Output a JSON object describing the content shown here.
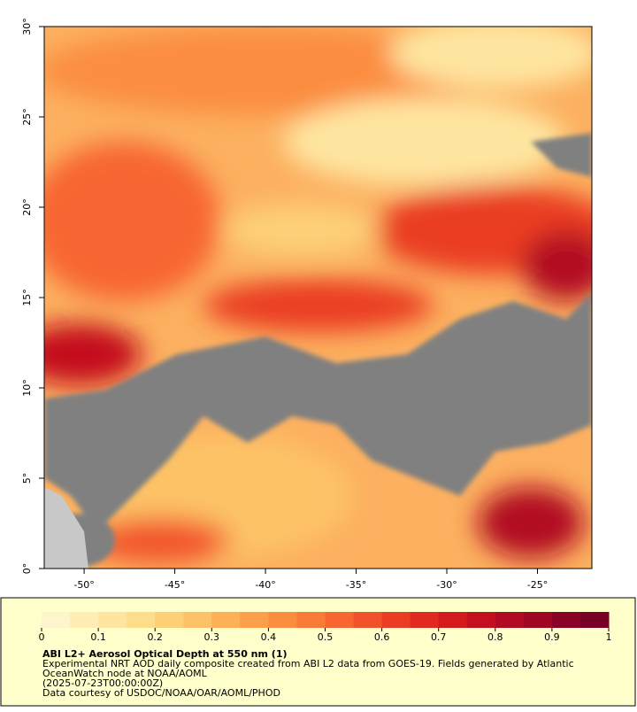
{
  "map": {
    "xlim": [
      -52.2,
      -22
    ],
    "ylim": [
      0,
      30
    ],
    "xticks": [
      {
        "value": -50,
        "label": "-50°"
      },
      {
        "value": -45,
        "label": "-45°"
      },
      {
        "value": -40,
        "label": "-40°"
      },
      {
        "value": -35,
        "label": "-35°"
      },
      {
        "value": -30,
        "label": "-30°"
      },
      {
        "value": -25,
        "label": "-25°"
      }
    ],
    "yticks": [
      {
        "value": 0,
        "label": "0°"
      },
      {
        "value": 5,
        "label": "5°"
      },
      {
        "value": 10,
        "label": "10°"
      },
      {
        "value": 15,
        "label": "15°"
      },
      {
        "value": 20,
        "label": "20°"
      },
      {
        "value": 25,
        "label": "25°"
      },
      {
        "value": 30,
        "label": "30°"
      }
    ]
  },
  "colorbar": {
    "range": [
      0,
      1
    ],
    "ticks": [
      0,
      0.1,
      0.2,
      0.3,
      0.4,
      0.5,
      0.6,
      0.7,
      0.8,
      0.9,
      1
    ],
    "colors": [
      "#fff5cc",
      "#ffedb3",
      "#fee6a0",
      "#fedd8a",
      "#fdd078",
      "#fdc266",
      "#fdb055",
      "#fc9f4a",
      "#fb8d40",
      "#fa7a38",
      "#f76630",
      "#f2522a",
      "#ea3d24",
      "#e0291f",
      "#d41a1c",
      "#c40f1f",
      "#b20a22",
      "#9e0624",
      "#8a0326",
      "#780024"
    ]
  },
  "caption": {
    "title": "ABI L2+ Aerosol Optical Depth at 550 nm (1)",
    "lines": [
      "Experimental NRT AOD daily composite created from ABI L2 data from GOES-19. Fields generated by Atlantic",
      "OceanWatch node at NOAA/AOML",
      "(2025-07-23T00:00:00Z)",
      "Data courtesy of USDOC/NOAA/OAR/AOML/PHOD"
    ]
  }
}
